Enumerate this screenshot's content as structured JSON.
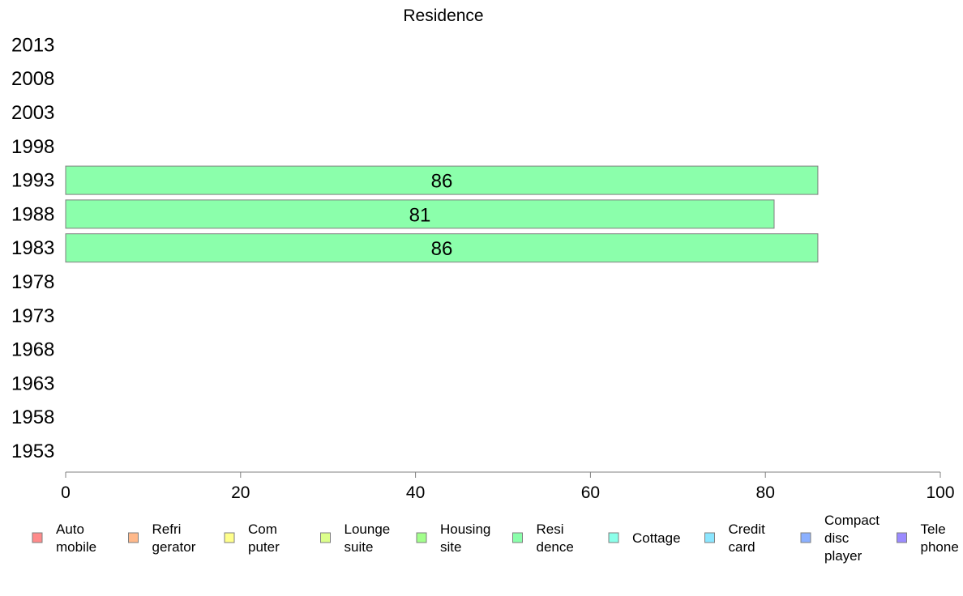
{
  "chart_data": {
    "type": "bar",
    "orientation": "horizontal",
    "title": "Residence",
    "categories": [
      "1953",
      "1958",
      "1963",
      "1968",
      "1973",
      "1978",
      "1983",
      "1988",
      "1993",
      "1998",
      "2003",
      "2008",
      "2013"
    ],
    "series": [
      {
        "name": "Resi dence",
        "color": "#8bffab",
        "values": [
          null,
          null,
          null,
          null,
          null,
          null,
          86,
          81,
          86,
          null,
          null,
          null,
          null
        ]
      }
    ],
    "xlim": [
      0,
      100
    ],
    "xticks": [
      0,
      20,
      40,
      60,
      80,
      100
    ],
    "xlabel": "",
    "ylabel": "",
    "grid": false,
    "legend_position": "bottom",
    "legend": [
      {
        "lines": [
          "Auto",
          "mobile"
        ],
        "color": "#ff8b8b"
      },
      {
        "lines": [
          "Refri",
          "gerator"
        ],
        "color": "#ffb98b"
      },
      {
        "lines": [
          "Com",
          "puter"
        ],
        "color": "#ffff8b"
      },
      {
        "lines": [
          "Lounge",
          "suite"
        ],
        "color": "#dcff8b"
      },
      {
        "lines": [
          "Housing",
          "site"
        ],
        "color": "#a2ff8b"
      },
      {
        "lines": [
          "Resi",
          "dence"
        ],
        "color": "#8bffab"
      },
      {
        "lines": [
          "Cottage"
        ],
        "color": "#8bffea"
      },
      {
        "lines": [
          "Credit",
          "card"
        ],
        "color": "#8be6ff"
      },
      {
        "lines": [
          "Compact",
          "disc",
          "player"
        ],
        "color": "#8bb0ff"
      },
      {
        "lines": [
          "Tele",
          "phone"
        ],
        "color": "#9b8bff"
      }
    ]
  }
}
